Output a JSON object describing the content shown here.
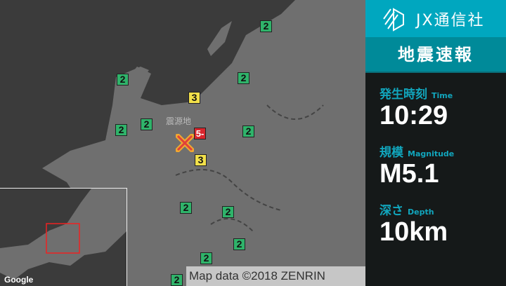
{
  "map": {
    "epicenter_label": "震源地",
    "attribution": "Map data ©2018 ZENRIN",
    "google_logo": "Google",
    "colors": {
      "sea": "#3b3b3b",
      "land": "#6f6f6f",
      "shindo2": "#2fb36a",
      "shindo3": "#f2e04a",
      "shindo5minus": "#d8262d",
      "epicenter": "#e84a3c"
    },
    "markers": [
      {
        "intensity": "2"
      },
      {
        "intensity": "2"
      },
      {
        "intensity": "2"
      },
      {
        "intensity": "2"
      },
      {
        "intensity": "2"
      },
      {
        "intensity": "2"
      },
      {
        "intensity": "2"
      },
      {
        "intensity": "2"
      },
      {
        "intensity": "2"
      },
      {
        "intensity": "2"
      },
      {
        "intensity": "2"
      },
      {
        "intensity": "3"
      },
      {
        "intensity": "3"
      },
      {
        "intensity": "5-"
      }
    ]
  },
  "panel": {
    "brand": "JX通信社",
    "title": "地震速報",
    "time": {
      "label": "発生時刻",
      "sub": "Time",
      "value": "10:29"
    },
    "magnitude": {
      "label": "規模",
      "sub": "Magnitude",
      "value": "M5.1"
    },
    "depth": {
      "label": "深さ",
      "sub": "Depth",
      "value": "10km"
    }
  }
}
